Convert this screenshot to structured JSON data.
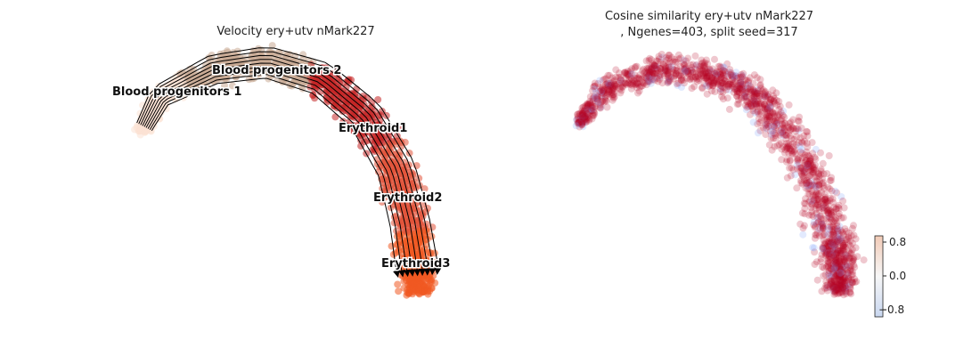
{
  "chart_data": [
    {
      "type": "scatter",
      "subtype": "umap-velocity-stream",
      "title": "Velocity ery+utv nMark227",
      "axes_visible": false,
      "clusters": [
        {
          "name": "Blood progenitors 1",
          "color": "#fbe2d3"
        },
        {
          "name": "Blood progenitors 2",
          "color": "#c8a994"
        },
        {
          "name": "Erythroid1",
          "color": "#c42727"
        },
        {
          "name": "Erythroid2",
          "color": "#e2533a"
        },
        {
          "name": "Erythroid3",
          "color": "#f15a22"
        }
      ],
      "stream_color": "#000000"
    },
    {
      "type": "scatter",
      "subtype": "umap-cosine-similarity",
      "title_line1": "Cosine similarity ery+utv nMark227",
      "title_line2": ", Ngenes=403, split seed=317",
      "axes_visible": false,
      "colorbar": {
        "colormap": "coolwarm",
        "range": [
          -1,
          1
        ],
        "ticks": [
          0.8,
          0.0,
          -0.8
        ],
        "tick_labels": [
          "0.8",
          "0.0",
          "−0.8"
        ]
      },
      "dominant_color": "#b40426",
      "minor_color": "#7b9ff9"
    }
  ]
}
